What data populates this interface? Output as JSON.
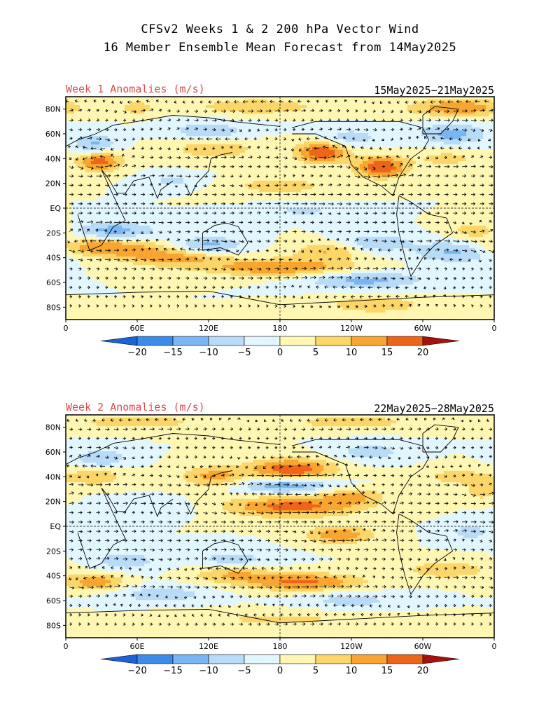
{
  "figure": {
    "title_line1": "CFSv2 Weeks 1 & 2 200 hPa Vector Wind",
    "title_line2": "16 Member Ensemble Mean Forecast from 14May2025"
  },
  "colors": {
    "title_left": "#e04a4a",
    "scale": [
      "#1a63d9",
      "#3c8bea",
      "#78b7f3",
      "#b8dcf8",
      "#e1f6ff",
      "#fff7b3",
      "#fdd66a",
      "#f8a631",
      "#ee6419",
      "#d22a13",
      "#a5120a"
    ]
  },
  "colorbar": {
    "levels": [
      "-20",
      "-15",
      "-10",
      "-5",
      "0",
      "5",
      "10",
      "15",
      "20"
    ]
  },
  "map_axes": {
    "lat_labels": [
      "80N",
      "60N",
      "40N",
      "20N",
      "EQ",
      "20S",
      "40S",
      "60S",
      "80S"
    ],
    "lon_labels": [
      "0",
      "60E",
      "120E",
      "180",
      "120W",
      "60W",
      "0"
    ]
  },
  "panels": [
    {
      "id": "week1",
      "left_title": "Week 1 Anomalies (m/s)",
      "right_title": "15May2025−21May2025",
      "blobs": [
        {
          "lon": 60,
          "lat": 81,
          "rx": 10,
          "ry": 4,
          "v": 8
        },
        {
          "lon": 160,
          "lat": 82,
          "rx": 35,
          "ry": 4,
          "v": 10
        },
        {
          "lon": 330,
          "lat": 81,
          "rx": 30,
          "ry": 5,
          "v": 14
        },
        {
          "lon": 25,
          "lat": 51,
          "rx": 12,
          "ry": 6,
          "v": -12
        },
        {
          "lon": 28,
          "lat": 38,
          "rx": 13,
          "ry": 6,
          "v": 18
        },
        {
          "lon": 120,
          "lat": 62,
          "rx": 22,
          "ry": 5,
          "v": -10
        },
        {
          "lon": 125,
          "lat": 48,
          "rx": 25,
          "ry": 6,
          "v": 9
        },
        {
          "lon": 215,
          "lat": 45,
          "rx": 15,
          "ry": 6,
          "v": 20
        },
        {
          "lon": 265,
          "lat": 33,
          "rx": 15,
          "ry": 6,
          "v": 20
        },
        {
          "lon": 240,
          "lat": 57,
          "rx": 18,
          "ry": 5,
          "v": -8
        },
        {
          "lon": 325,
          "lat": 60,
          "rx": 20,
          "ry": 6,
          "v": -12
        },
        {
          "lon": 320,
          "lat": 40,
          "rx": 20,
          "ry": 5,
          "v": 7
        },
        {
          "lon": 180,
          "lat": 18,
          "rx": 30,
          "ry": 5,
          "v": 8
        },
        {
          "lon": 90,
          "lat": 22,
          "rx": 18,
          "ry": 4,
          "v": -6
        },
        {
          "lon": 40,
          "lat": -18,
          "rx": 25,
          "ry": 5,
          "v": -12
        },
        {
          "lon": 120,
          "lat": -30,
          "rx": 20,
          "ry": 5,
          "v": -12
        },
        {
          "lon": 30,
          "lat": -32,
          "rx": 35,
          "ry": 5,
          "v": 15
        },
        {
          "lon": 90,
          "lat": -40,
          "rx": 30,
          "ry": 5,
          "v": 12
        },
        {
          "lon": 180,
          "lat": -48,
          "rx": 45,
          "ry": 5,
          "v": 15
        },
        {
          "lon": 220,
          "lat": -35,
          "rx": 20,
          "ry": 5,
          "v": 10
        },
        {
          "lon": 260,
          "lat": -28,
          "rx": 20,
          "ry": 5,
          "v": -10
        },
        {
          "lon": 330,
          "lat": -35,
          "rx": 25,
          "ry": 6,
          "v": -13
        },
        {
          "lon": 345,
          "lat": -18,
          "rx": 15,
          "ry": 5,
          "v": 9
        },
        {
          "lon": 250,
          "lat": -58,
          "rx": 35,
          "ry": 5,
          "v": -12
        },
        {
          "lon": 260,
          "lat": -78,
          "rx": 30,
          "ry": 5,
          "v": 9
        },
        {
          "lon": 200,
          "lat": -2,
          "rx": 25,
          "ry": 4,
          "v": -6
        }
      ]
    },
    {
      "id": "week2",
      "left_title": "Week 2 Anomalies (m/s)",
      "right_title": "22May2025−28May2025",
      "blobs": [
        {
          "lon": 60,
          "lat": 84,
          "rx": 40,
          "ry": 4,
          "v": 8
        },
        {
          "lon": 240,
          "lat": 84,
          "rx": 40,
          "ry": 4,
          "v": 8
        },
        {
          "lon": 30,
          "lat": 55,
          "rx": 15,
          "ry": 5,
          "v": -10
        },
        {
          "lon": 25,
          "lat": 40,
          "rx": 15,
          "ry": 5,
          "v": 10
        },
        {
          "lon": 125,
          "lat": 40,
          "rx": 20,
          "ry": 6,
          "v": 12
        },
        {
          "lon": 190,
          "lat": 46,
          "rx": 25,
          "ry": 6,
          "v": 19
        },
        {
          "lon": 185,
          "lat": 33,
          "rx": 30,
          "ry": 5,
          "v": -14
        },
        {
          "lon": 190,
          "lat": 16,
          "rx": 40,
          "ry": 6,
          "v": 17
        },
        {
          "lon": 240,
          "lat": 25,
          "rx": 20,
          "ry": 5,
          "v": 10
        },
        {
          "lon": 255,
          "lat": 60,
          "rx": 20,
          "ry": 5,
          "v": -8
        },
        {
          "lon": 330,
          "lat": 40,
          "rx": 20,
          "ry": 5,
          "v": 8
        },
        {
          "lon": 350,
          "lat": 28,
          "rx": 10,
          "ry": 5,
          "v": 8
        },
        {
          "lon": 70,
          "lat": 15,
          "rx": 30,
          "ry": 5,
          "v": -5
        },
        {
          "lon": 230,
          "lat": -7,
          "rx": 20,
          "ry": 5,
          "v": 14
        },
        {
          "lon": 50,
          "lat": -28,
          "rx": 20,
          "ry": 6,
          "v": -8
        },
        {
          "lon": 140,
          "lat": -28,
          "rx": 25,
          "ry": 6,
          "v": -8
        },
        {
          "lon": 25,
          "lat": -45,
          "rx": 18,
          "ry": 5,
          "v": 13
        },
        {
          "lon": 140,
          "lat": -38,
          "rx": 25,
          "ry": 5,
          "v": 11
        },
        {
          "lon": 200,
          "lat": -45,
          "rx": 35,
          "ry": 5,
          "v": 16
        },
        {
          "lon": 320,
          "lat": -35,
          "rx": 25,
          "ry": 5,
          "v": 9
        },
        {
          "lon": 340,
          "lat": -5,
          "rx": 15,
          "ry": 5,
          "v": -7
        },
        {
          "lon": 80,
          "lat": -55,
          "rx": 30,
          "ry": 5,
          "v": -8
        },
        {
          "lon": 240,
          "lat": -60,
          "rx": 30,
          "ry": 5,
          "v": -7
        },
        {
          "lon": 180,
          "lat": -75,
          "rx": 60,
          "ry": 5,
          "v": 6
        }
      ]
    }
  ]
}
